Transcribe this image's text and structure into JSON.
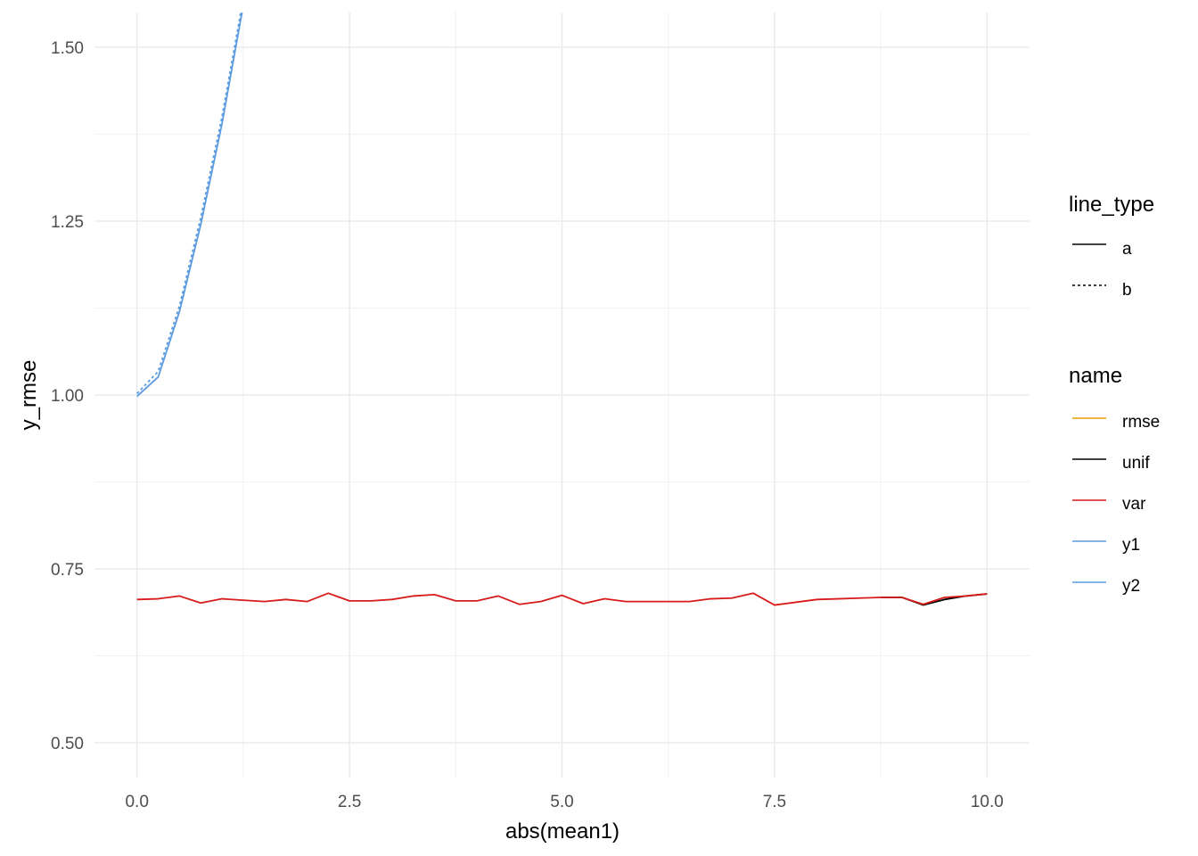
{
  "chart_data": {
    "type": "line",
    "xlabel": "abs(mean1)",
    "ylabel": "y_rmse",
    "xlim": [
      -0.5,
      10.5
    ],
    "ylim": [
      0.45,
      1.55
    ],
    "x_ticks": [
      0.0,
      2.5,
      5.0,
      7.5,
      10.0
    ],
    "x_tick_labels": [
      "0.0",
      "2.5",
      "5.0",
      "7.5",
      "10.0"
    ],
    "y_ticks": [
      0.5,
      0.75,
      1.0,
      1.25,
      1.5
    ],
    "y_tick_labels": [
      "0.50",
      "0.75",
      "1.00",
      "1.25",
      "1.50"
    ],
    "grid": true,
    "legend_position": "right",
    "legends": [
      {
        "title": "line_type",
        "entries": [
          {
            "label": "a",
            "color": "#000000",
            "dash": "solid"
          },
          {
            "label": "b",
            "color": "#000000",
            "dash": "dotted"
          }
        ]
      },
      {
        "title": "name",
        "entries": [
          {
            "label": "rmse",
            "color": "#E69F00"
          },
          {
            "label": "unif",
            "color": "#000000"
          },
          {
            "label": "var",
            "color": "#D81B1B"
          },
          {
            "label": "y1",
            "color": "#5B9BE0"
          },
          {
            "label": "y2",
            "color": "#5B9BE0"
          }
        ]
      }
    ],
    "series": [
      {
        "name": "y1",
        "color": "#5B9BE0",
        "line_type": "a",
        "x": [
          0.0,
          0.25,
          0.5,
          0.75,
          1.0,
          1.25
        ],
        "y": [
          0.998,
          1.026,
          1.12,
          1.245,
          1.39,
          1.56
        ]
      },
      {
        "name": "y2",
        "color": "#5B9BE0",
        "line_type": "b",
        "x": [
          0.0,
          0.25,
          0.5,
          0.75,
          1.0,
          1.25
        ],
        "y": [
          1.002,
          1.034,
          1.128,
          1.255,
          1.4,
          1.57
        ]
      },
      {
        "name": "unif",
        "color": "#000000",
        "line_type": "a",
        "x": [
          8.75,
          9.0,
          9.25,
          9.5,
          9.75,
          10.0
        ],
        "y": [
          0.709,
          0.709,
          0.698,
          0.706,
          0.711,
          0.714
        ]
      },
      {
        "name": "var",
        "color": "#D81B1B",
        "line_type": "a",
        "x": [
          0.0,
          0.25,
          0.5,
          0.75,
          1.0,
          1.25,
          1.5,
          1.75,
          2.0,
          2.25,
          2.5,
          2.75,
          3.0,
          3.25,
          3.5,
          3.75,
          4.0,
          4.25,
          4.5,
          4.75,
          5.0,
          5.25,
          5.5,
          5.75,
          6.0,
          6.25,
          6.5,
          6.75,
          7.0,
          7.25,
          7.5,
          7.75,
          8.0,
          8.25,
          8.5,
          8.75,
          9.0,
          9.25,
          9.5,
          9.75,
          10.0
        ],
        "y": [
          0.706,
          0.707,
          0.711,
          0.701,
          0.707,
          0.705,
          0.703,
          0.706,
          0.703,
          0.715,
          0.704,
          0.704,
          0.706,
          0.711,
          0.713,
          0.704,
          0.704,
          0.711,
          0.699,
          0.703,
          0.712,
          0.7,
          0.707,
          0.703,
          0.703,
          0.703,
          0.703,
          0.707,
          0.708,
          0.715,
          0.698,
          0.702,
          0.706,
          0.707,
          0.708,
          0.709,
          0.709,
          0.699,
          0.709,
          0.711,
          0.714
        ]
      }
    ]
  }
}
